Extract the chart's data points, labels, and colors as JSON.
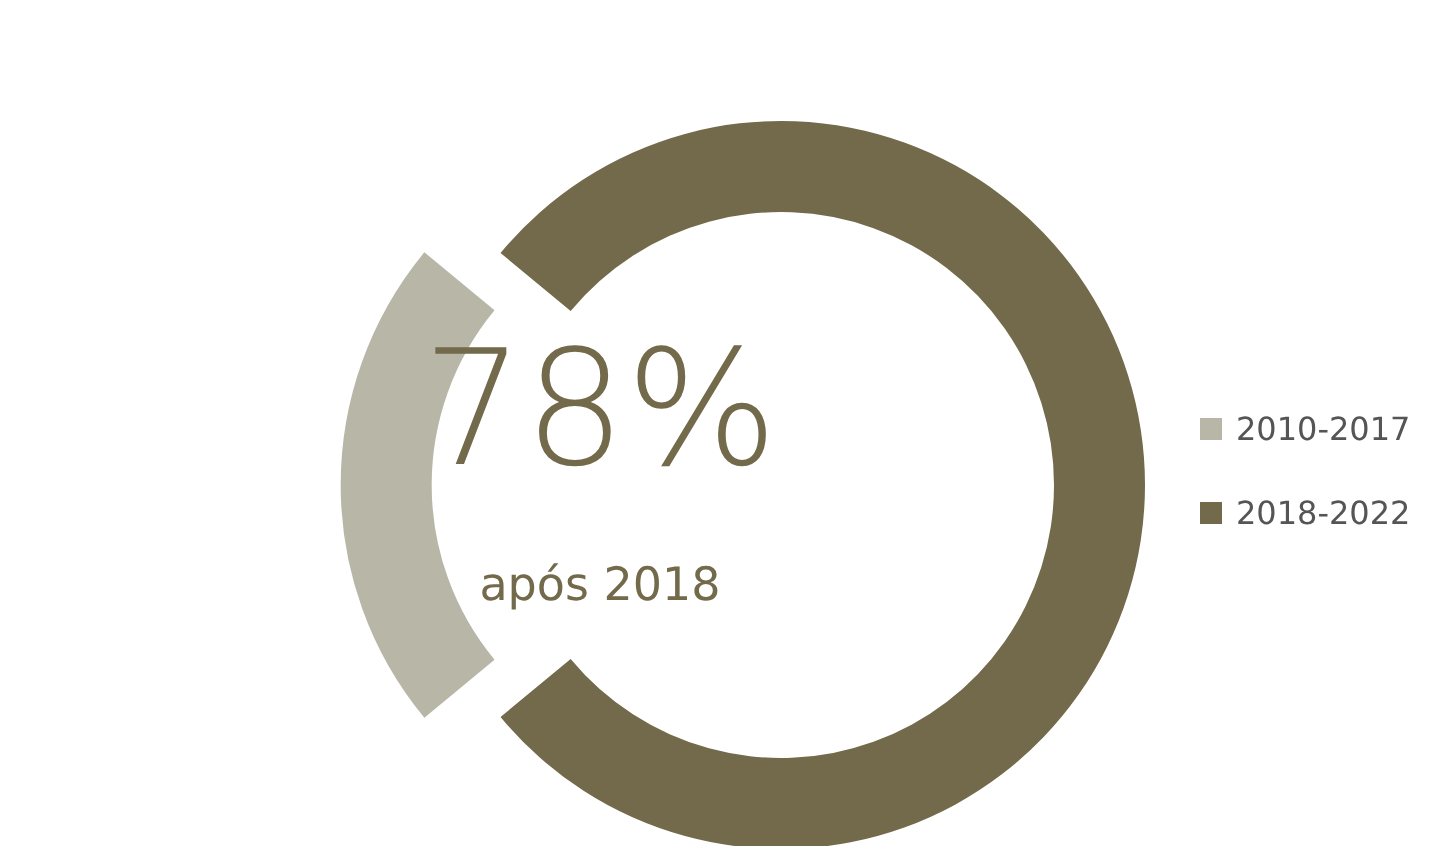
{
  "chart_data": {
    "type": "donut",
    "categories": [
      "2010-2017",
      "2018-2022"
    ],
    "values": [
      22,
      78
    ],
    "colors": [
      "#b8b6a7",
      "#736a4b"
    ],
    "legend": "right",
    "annotations": [
      "78%",
      "após 2018"
    ]
  }
}
